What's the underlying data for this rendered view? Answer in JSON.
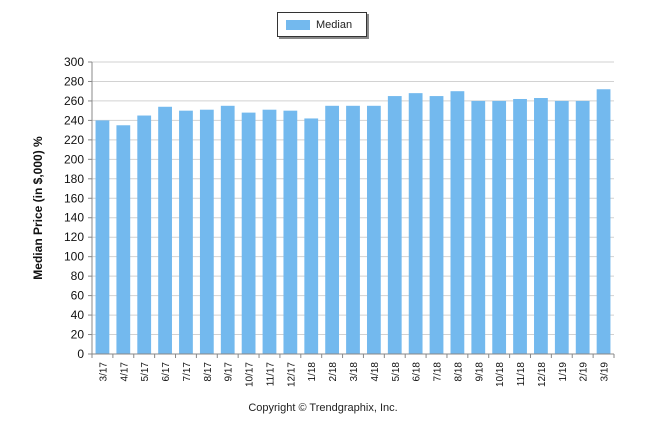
{
  "chart_data": {
    "type": "bar",
    "categories": [
      "3/17",
      "4/17",
      "5/17",
      "6/17",
      "7/17",
      "8/17",
      "9/17",
      "10/17",
      "11/17",
      "12/17",
      "1/18",
      "2/18",
      "3/18",
      "4/18",
      "5/18",
      "6/18",
      "7/18",
      "8/18",
      "9/18",
      "10/18",
      "11/18",
      "12/18",
      "1/19",
      "2/19",
      "3/19"
    ],
    "series": [
      {
        "name": "Median",
        "color": "#73b9ee",
        "values": [
          240,
          235,
          245,
          254,
          250,
          251,
          255,
          248,
          251,
          250,
          242,
          255,
          255,
          255,
          265,
          268,
          265,
          270,
          260,
          260,
          262,
          263,
          260,
          260,
          272
        ]
      }
    ],
    "ylabel": "Median Price (in $,000) %",
    "xlabel": "",
    "ylim": [
      0,
      300
    ],
    "yticks": [
      0,
      20,
      40,
      60,
      80,
      100,
      120,
      140,
      160,
      180,
      200,
      220,
      240,
      260,
      280,
      300
    ],
    "grid": true,
    "legend_position": "top-center"
  },
  "legend": {
    "label": "Median"
  },
  "footer": {
    "copyright": "Copyright © Trendgraphix, Inc."
  }
}
